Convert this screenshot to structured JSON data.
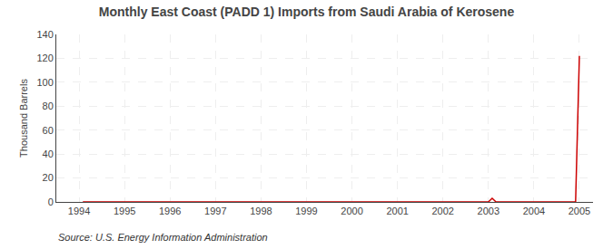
{
  "chart_data": {
    "type": "line",
    "title": "Monthly East Coast (PADD 1) Imports from Saudi Arabia of Kerosene",
    "ylabel": "Thousand Barrels",
    "annotations": [
      "Source: U.S. Energy Information Administration"
    ],
    "x": [
      1994.083,
      1994.167,
      1994.25,
      1994.333,
      1994.417,
      1994.5,
      1994.583,
      1994.667,
      1994.75,
      1994.833,
      1994.917,
      1995.0,
      1995.083,
      1995.167,
      1995.25,
      1995.333,
      1995.417,
      1995.5,
      1995.583,
      1995.667,
      1995.75,
      1995.833,
      1995.917,
      1996.0,
      1996.083,
      1996.167,
      1996.25,
      1996.333,
      1996.417,
      1996.5,
      1996.583,
      1996.667,
      1996.75,
      1996.833,
      1996.917,
      1997.0,
      1997.083,
      1997.167,
      1997.25,
      1997.333,
      1997.417,
      1997.5,
      1997.583,
      1997.667,
      1997.75,
      1997.833,
      1997.917,
      1998.0,
      1998.083,
      1998.167,
      1998.25,
      1998.333,
      1998.417,
      1998.5,
      1998.583,
      1998.667,
      1998.75,
      1998.833,
      1998.917,
      1999.0,
      1999.083,
      1999.167,
      1999.25,
      1999.333,
      1999.417,
      1999.5,
      1999.583,
      1999.667,
      1999.75,
      1999.833,
      1999.917,
      2000.0,
      2000.083,
      2000.167,
      2000.25,
      2000.333,
      2000.417,
      2000.5,
      2000.583,
      2000.667,
      2000.75,
      2000.833,
      2000.917,
      2001.0,
      2001.083,
      2001.167,
      2001.25,
      2001.333,
      2001.417,
      2001.5,
      2001.583,
      2001.667,
      2001.75,
      2001.833,
      2001.917,
      2002.0,
      2002.083,
      2002.167,
      2002.25,
      2002.333,
      2002.417,
      2002.5,
      2002.583,
      2002.667,
      2002.75,
      2002.833,
      2002.917,
      2003.0,
      2003.083,
      2003.167,
      2003.25,
      2003.333,
      2003.417,
      2003.5,
      2003.583,
      2003.667,
      2003.75,
      2003.833,
      2003.917,
      2004.0,
      2004.083,
      2004.167,
      2004.25,
      2004.333,
      2004.417,
      2004.5,
      2004.583,
      2004.667,
      2004.75,
      2004.833,
      2004.917,
      2005.0
    ],
    "values": [
      0,
      0,
      0,
      0,
      0,
      0,
      0,
      0,
      0,
      0,
      0,
      0,
      0,
      0,
      0,
      0,
      0,
      0,
      0,
      0,
      0,
      0,
      0,
      0,
      0,
      0,
      0,
      0,
      0,
      0,
      0,
      0,
      0,
      0,
      0,
      0,
      0,
      0,
      0,
      0,
      0,
      0,
      0,
      0,
      0,
      0,
      0,
      0,
      0,
      0,
      0,
      0,
      0,
      0,
      0,
      0,
      0,
      0,
      0,
      0,
      0,
      0,
      0,
      0,
      0,
      0,
      0,
      0,
      0,
      0,
      0,
      0,
      0,
      0,
      0,
      0,
      0,
      0,
      0,
      0,
      0,
      0,
      0,
      0,
      0,
      0,
      0,
      0,
      0,
      0,
      0,
      0,
      0,
      0,
      0,
      0,
      0,
      0,
      0,
      0,
      0,
      0,
      0,
      0,
      0,
      0,
      0,
      0,
      3,
      0,
      0,
      0,
      0,
      0,
      0,
      0,
      0,
      0,
      0,
      0,
      0,
      0,
      0,
      0,
      0,
      0,
      0,
      0,
      0,
      0,
      0,
      122
    ],
    "color": "#cc0000",
    "xlim": [
      1993.5,
      2005.3
    ],
    "ylim": [
      0,
      140
    ],
    "xticks": [
      1994,
      1995,
      1996,
      1997,
      1998,
      1999,
      2000,
      2001,
      2002,
      2003,
      2004,
      2005
    ],
    "yticks": [
      0,
      20,
      40,
      60,
      80,
      100,
      120,
      140
    ],
    "grid": true
  }
}
